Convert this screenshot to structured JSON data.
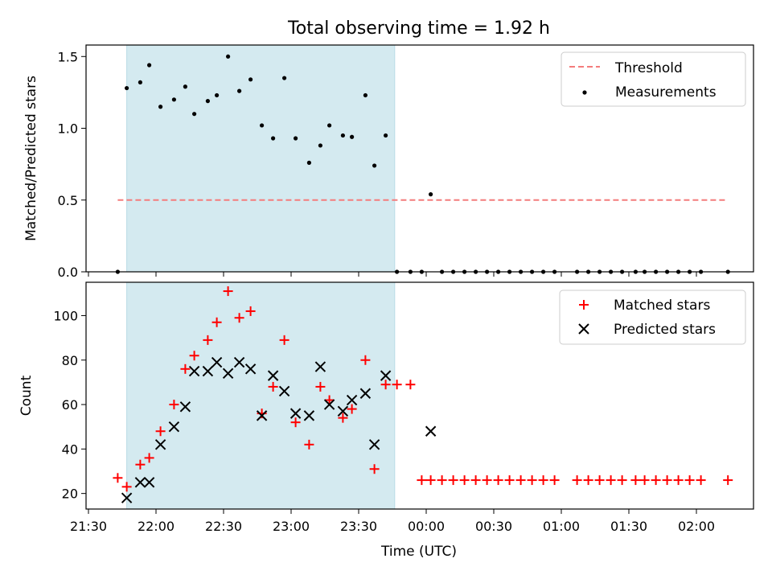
{
  "chart_data": [
    {
      "type": "scatter",
      "title": "Total observing time = 1.92 h",
      "ylabel": "Matched/Predicted stars",
      "xlabel": "",
      "ylim": [
        0,
        1.58
      ],
      "yticks": [
        0.0,
        0.5,
        1.0,
        1.5
      ],
      "ytick_labels": [
        "0.0",
        "0.5",
        "1.0",
        "1.5"
      ],
      "shaded_interval": [
        "21:47",
        "23:46"
      ],
      "shade_color": "#d4eaf0",
      "threshold": {
        "name": "Threshold",
        "value": 0.5,
        "x_range": [
          "21:43",
          "02:14"
        ],
        "color": "#f47c7c"
      },
      "series": [
        {
          "name": "Measurements",
          "color": "#000000",
          "points": [
            [
              "21:43",
              0.0
            ],
            [
              "21:47",
              1.28
            ],
            [
              "21:53",
              1.32
            ],
            [
              "21:57",
              1.44
            ],
            [
              "22:02",
              1.15
            ],
            [
              "22:08",
              1.2
            ],
            [
              "22:13",
              1.29
            ],
            [
              "22:17",
              1.1
            ],
            [
              "22:23",
              1.19
            ],
            [
              "22:27",
              1.23
            ],
            [
              "22:32",
              1.5
            ],
            [
              "22:37",
              1.26
            ],
            [
              "22:42",
              1.34
            ],
            [
              "22:47",
              1.02
            ],
            [
              "22:52",
              0.93
            ],
            [
              "22:57",
              1.35
            ],
            [
              "23:02",
              0.93
            ],
            [
              "23:08",
              0.76
            ],
            [
              "23:13",
              0.88
            ],
            [
              "23:17",
              1.02
            ],
            [
              "23:23",
              0.95
            ],
            [
              "23:27",
              0.94
            ],
            [
              "23:33",
              1.23
            ],
            [
              "23:37",
              0.74
            ],
            [
              "23:42",
              0.95
            ],
            [
              "23:47",
              0.0
            ],
            [
              "23:53",
              0.0
            ],
            [
              "23:58",
              0.0
            ],
            [
              "00:02",
              0.54
            ],
            [
              "00:07",
              0.0
            ],
            [
              "00:12",
              0.0
            ],
            [
              "00:17",
              0.0
            ],
            [
              "00:22",
              0.0
            ],
            [
              "00:27",
              0.0
            ],
            [
              "00:32",
              0.0
            ],
            [
              "00:37",
              0.0
            ],
            [
              "00:42",
              0.0
            ],
            [
              "00:47",
              0.0
            ],
            [
              "00:52",
              0.0
            ],
            [
              "00:57",
              0.0
            ],
            [
              "01:07",
              0.0
            ],
            [
              "01:12",
              0.0
            ],
            [
              "01:17",
              0.0
            ],
            [
              "01:22",
              0.0
            ],
            [
              "01:27",
              0.0
            ],
            [
              "01:33",
              0.0
            ],
            [
              "01:37",
              0.0
            ],
            [
              "01:42",
              0.0
            ],
            [
              "01:47",
              0.0
            ],
            [
              "01:52",
              0.0
            ],
            [
              "01:57",
              0.0
            ],
            [
              "02:02",
              0.0
            ],
            [
              "02:14",
              0.0
            ]
          ]
        }
      ],
      "legend": [
        "Threshold",
        "Measurements"
      ],
      "legend_position": "top-right"
    },
    {
      "type": "scatter",
      "title": "",
      "ylabel": "Count",
      "xlabel": "Time (UTC)",
      "ylim": [
        13,
        115
      ],
      "yticks": [
        20,
        40,
        60,
        80,
        100
      ],
      "ytick_labels": [
        "20",
        "40",
        "60",
        "80",
        "100"
      ],
      "x_ticks": [
        "21:30",
        "22:00",
        "22:30",
        "23:00",
        "23:30",
        "00:00",
        "00:30",
        "01:00",
        "01:30",
        "02:00"
      ],
      "shaded_interval": [
        "21:47",
        "23:46"
      ],
      "series": [
        {
          "name": "Matched stars",
          "marker": "plus",
          "color": "#ff0000",
          "points": [
            [
              "21:43",
              27
            ],
            [
              "21:47",
              23
            ],
            [
              "21:53",
              33
            ],
            [
              "21:57",
              36
            ],
            [
              "22:02",
              48
            ],
            [
              "22:08",
              60
            ],
            [
              "22:13",
              76
            ],
            [
              "22:17",
              82
            ],
            [
              "22:23",
              89
            ],
            [
              "22:27",
              97
            ],
            [
              "22:32",
              111
            ],
            [
              "22:37",
              99
            ],
            [
              "22:42",
              102
            ],
            [
              "22:47",
              56
            ],
            [
              "22:52",
              68
            ],
            [
              "22:57",
              89
            ],
            [
              "23:02",
              52
            ],
            [
              "23:08",
              42
            ],
            [
              "23:13",
              68
            ],
            [
              "23:17",
              62
            ],
            [
              "23:23",
              54
            ],
            [
              "23:27",
              58
            ],
            [
              "23:33",
              80
            ],
            [
              "23:37",
              31
            ],
            [
              "23:42",
              69
            ],
            [
              "23:47",
              69
            ],
            [
              "23:53",
              69
            ],
            [
              "23:58",
              26
            ],
            [
              "00:02",
              26
            ],
            [
              "00:07",
              26
            ],
            [
              "00:12",
              26
            ],
            [
              "00:17",
              26
            ],
            [
              "00:22",
              26
            ],
            [
              "00:27",
              26
            ],
            [
              "00:32",
              26
            ],
            [
              "00:37",
              26
            ],
            [
              "00:42",
              26
            ],
            [
              "00:47",
              26
            ],
            [
              "00:52",
              26
            ],
            [
              "00:57",
              26
            ],
            [
              "01:07",
              26
            ],
            [
              "01:12",
              26
            ],
            [
              "01:17",
              26
            ],
            [
              "01:22",
              26
            ],
            [
              "01:27",
              26
            ],
            [
              "01:33",
              26
            ],
            [
              "01:37",
              26
            ],
            [
              "01:42",
              26
            ],
            [
              "01:47",
              26
            ],
            [
              "01:52",
              26
            ],
            [
              "01:57",
              26
            ],
            [
              "02:02",
              26
            ],
            [
              "02:14",
              26
            ]
          ]
        },
        {
          "name": "Predicted stars",
          "marker": "x",
          "color": "#000000",
          "points": [
            [
              "21:47",
              18
            ],
            [
              "21:53",
              25
            ],
            [
              "21:57",
              25
            ],
            [
              "22:02",
              42
            ],
            [
              "22:08",
              50
            ],
            [
              "22:13",
              59
            ],
            [
              "22:17",
              75
            ],
            [
              "22:23",
              75
            ],
            [
              "22:27",
              79
            ],
            [
              "22:32",
              74
            ],
            [
              "22:37",
              79
            ],
            [
              "22:42",
              76
            ],
            [
              "22:47",
              55
            ],
            [
              "22:52",
              73
            ],
            [
              "22:57",
              66
            ],
            [
              "23:02",
              56
            ],
            [
              "23:08",
              55
            ],
            [
              "23:13",
              77
            ],
            [
              "23:17",
              60
            ],
            [
              "23:23",
              57
            ],
            [
              "23:27",
              62
            ],
            [
              "23:33",
              65
            ],
            [
              "23:37",
              42
            ],
            [
              "23:42",
              73
            ],
            [
              "00:02",
              48
            ]
          ]
        }
      ],
      "legend": [
        "Matched stars",
        "Predicted stars"
      ],
      "legend_position": "top-right"
    }
  ]
}
